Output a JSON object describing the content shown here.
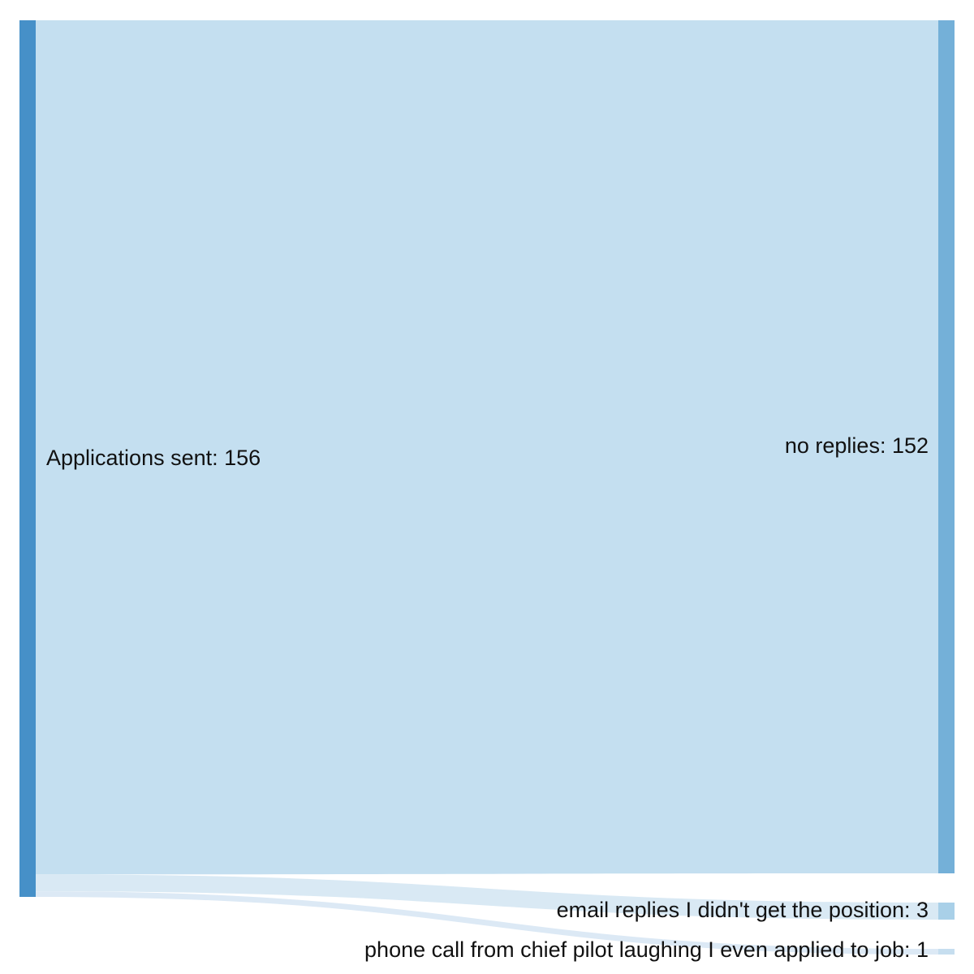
{
  "chart_data": {
    "type": "sankey",
    "unit_label_separator": ": ",
    "nodes": [
      {
        "id": "src",
        "name": "Applications sent",
        "value": 156,
        "column": 0,
        "color": "#4690c8"
      },
      {
        "id": "none",
        "name": "no replies",
        "value": 152,
        "column": 1,
        "color": "#74b0d8"
      },
      {
        "id": "email",
        "name": "email replies I didn't get the position",
        "value": 3,
        "column": 1,
        "color": "#a9d0e8"
      },
      {
        "id": "phone",
        "name": "phone call from chief pilot laughing I even applied to job",
        "value": 1,
        "column": 1,
        "color": "#c6deef"
      }
    ],
    "links": [
      {
        "source": "src",
        "target": "none",
        "value": 152,
        "color": "#c4dff0"
      },
      {
        "source": "src",
        "target": "email",
        "value": 3,
        "color": "#d9e9f4"
      },
      {
        "source": "src",
        "target": "phone",
        "value": 1,
        "color": "#dce9f5"
      }
    ],
    "labels": {
      "src": "Applications sent: 156",
      "none": "no replies: 152",
      "email": "email replies I didn't get the position: 3",
      "phone": "phone call from chief pilot laughing I even applied to job: 1"
    }
  }
}
